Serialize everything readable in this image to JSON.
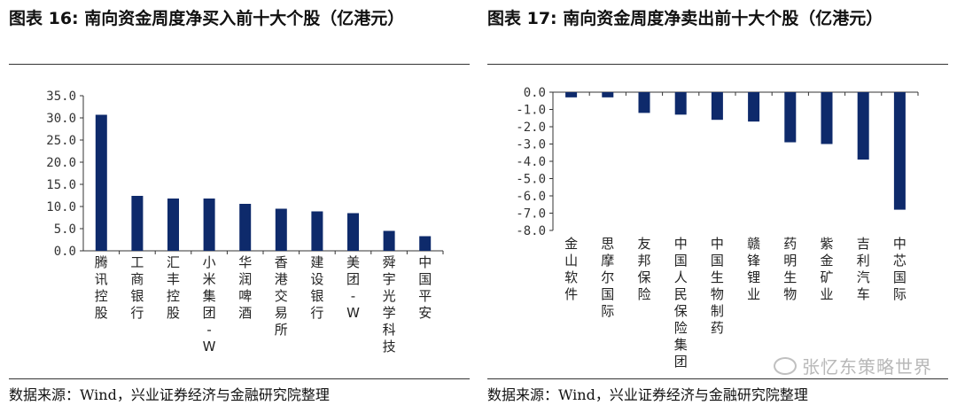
{
  "panels": {
    "left": {
      "title": "图表 16:  南向资金周度净买入前十大个股（亿港元）",
      "source": "数据来源：Wind，兴业证券经济与金融研究院整理"
    },
    "right": {
      "title": "图表 17:  南向资金周度净卖出前十大个股（亿港元）",
      "source": "数据来源：Wind，兴业证券经济与金融研究院整理"
    }
  },
  "watermark": "张忆东策略世界",
  "colors": {
    "bar": "#0e2a6b",
    "axis": "#333333"
  },
  "chart_data": [
    {
      "type": "bar",
      "title": "",
      "categories": [
        "腾讯控股",
        "工商银行",
        "汇丰控股",
        "小米集团-W",
        "华润啤酒",
        "香港交易所",
        "建设银行",
        "美团-W",
        "舜宇光学科技",
        "中国平安"
      ],
      "values": [
        30.7,
        12.4,
        11.8,
        11.8,
        10.6,
        9.5,
        8.9,
        8.5,
        4.5,
        3.3
      ],
      "ylim": [
        0,
        35
      ],
      "yticks": [
        "0.0",
        "5.0",
        "10.0",
        "15.0",
        "20.0",
        "25.0",
        "30.0",
        "35.0"
      ],
      "grid": false,
      "xlabel": "",
      "ylabel": ""
    },
    {
      "type": "bar",
      "title": "",
      "categories": [
        "金山软件",
        "思摩尔国际",
        "友邦保险",
        "中国人民保险集团",
        "中国生物制药",
        "赣锋锂业",
        "药明生物",
        "紫金矿业",
        "吉利汽车",
        "中芯国际"
      ],
      "values": [
        -0.3,
        -0.3,
        -1.2,
        -1.3,
        -1.6,
        -1.7,
        -2.9,
        -3.0,
        -3.9,
        -6.8
      ],
      "ylim": [
        -8,
        0
      ],
      "yticks": [
        "0.0",
        "-1.0",
        "-2.0",
        "-3.0",
        "-4.0",
        "-5.0",
        "-6.0",
        "-7.0",
        "-8.0"
      ],
      "grid": false,
      "xlabel": "",
      "ylabel": ""
    }
  ]
}
